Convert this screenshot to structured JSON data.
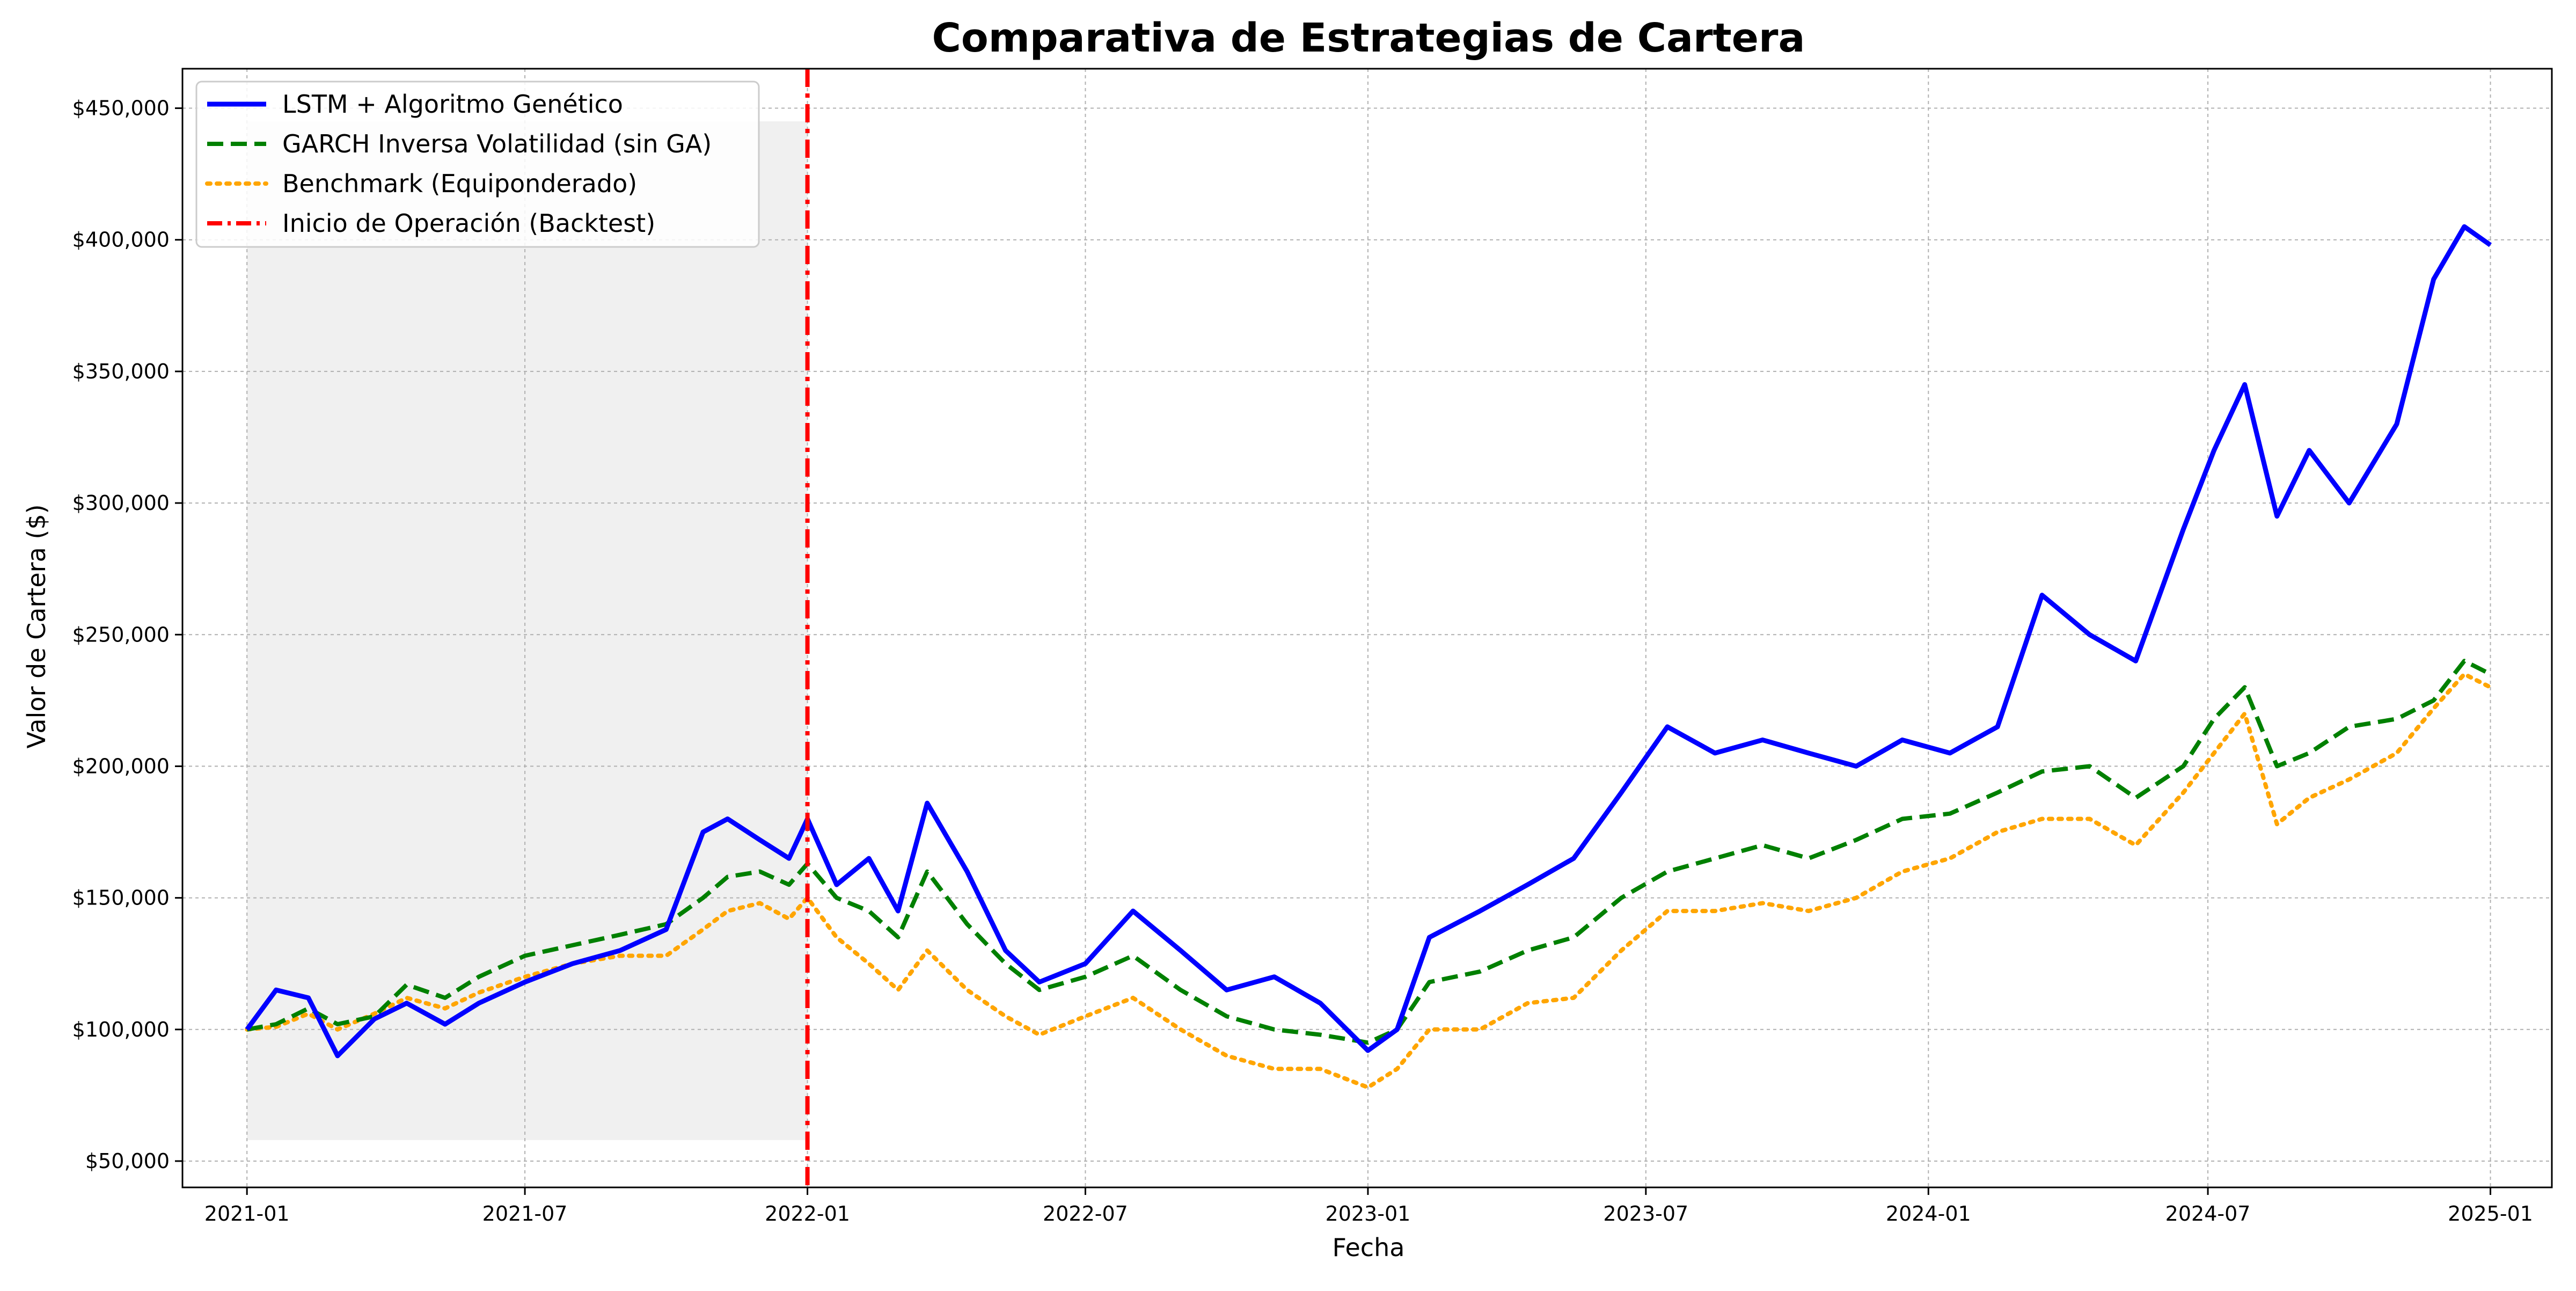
{
  "chart_data": {
    "type": "line",
    "title": "Comparativa de Estrategias de Cartera",
    "xlabel": "Fecha",
    "ylabel": "Valor de Cartera ($)",
    "xlim": [
      "2020-11-20",
      "2025-02-10"
    ],
    "ylim": [
      40000,
      465000
    ],
    "x_ticks": [
      "2021-01",
      "2021-07",
      "2022-01",
      "2022-07",
      "2023-01",
      "2023-07",
      "2024-01",
      "2024-07",
      "2025-01"
    ],
    "y_ticks": [
      50000,
      100000,
      150000,
      200000,
      250000,
      300000,
      350000,
      400000,
      450000
    ],
    "y_tick_labels": [
      "$50,000",
      "$100,000",
      "$150,000",
      "$200,000",
      "$250,000",
      "$300,000",
      "$350,000",
      "$400,000",
      "$450,000"
    ],
    "grid": true,
    "legend_position": "top-left",
    "shaded_region": {
      "x_start": "2021-01-01",
      "x_end": "2022-01-01",
      "y_range": [
        58000,
        445000
      ],
      "color": "#f0f0f0"
    },
    "backtest_start": "2022-01-01",
    "series": [
      {
        "name": "LSTM + Algoritmo Genético",
        "color": "#0000ff",
        "style": "solid",
        "x": [
          "2021-01-01",
          "2021-01-20",
          "2021-02-10",
          "2021-03-01",
          "2021-03-25",
          "2021-04-15",
          "2021-05-10",
          "2021-06-01",
          "2021-07-01",
          "2021-08-01",
          "2021-09-01",
          "2021-10-01",
          "2021-10-25",
          "2021-11-10",
          "2021-12-01",
          "2021-12-20",
          "2022-01-01",
          "2022-01-20",
          "2022-02-10",
          "2022-03-01",
          "2022-03-20",
          "2022-04-15",
          "2022-05-10",
          "2022-06-01",
          "2022-07-01",
          "2022-08-01",
          "2022-09-01",
          "2022-10-01",
          "2022-11-01",
          "2022-12-01",
          "2023-01-01",
          "2023-01-20",
          "2023-02-10",
          "2023-03-15",
          "2023-04-15",
          "2023-05-15",
          "2023-06-15",
          "2023-07-15",
          "2023-08-15",
          "2023-09-15",
          "2023-10-15",
          "2023-11-15",
          "2023-12-15",
          "2024-01-15",
          "2024-02-15",
          "2024-03-15",
          "2024-04-15",
          "2024-05-15",
          "2024-06-15",
          "2024-07-05",
          "2024-07-25",
          "2024-08-15",
          "2024-09-05",
          "2024-10-01",
          "2024-11-01",
          "2024-11-25",
          "2024-12-15",
          "2025-01-01"
        ],
        "values": [
          100000,
          115000,
          112000,
          90000,
          104000,
          110000,
          102000,
          110000,
          118000,
          125000,
          130000,
          138000,
          175000,
          180000,
          172000,
          165000,
          180000,
          155000,
          165000,
          145000,
          186000,
          160000,
          130000,
          118000,
          125000,
          145000,
          130000,
          115000,
          120000,
          110000,
          92000,
          100000,
          135000,
          145000,
          155000,
          165000,
          190000,
          215000,
          205000,
          210000,
          205000,
          200000,
          210000,
          205000,
          215000,
          265000,
          250000,
          240000,
          290000,
          320000,
          345000,
          295000,
          320000,
          300000,
          330000,
          385000,
          405000,
          398000
        ]
      },
      {
        "name": "GARCH Inversa Volatilidad (sin GA)",
        "color": "#008000",
        "style": "dashed",
        "x": [
          "2021-01-01",
          "2021-01-20",
          "2021-02-10",
          "2021-03-01",
          "2021-03-25",
          "2021-04-15",
          "2021-05-10",
          "2021-06-01",
          "2021-07-01",
          "2021-08-01",
          "2021-09-01",
          "2021-10-01",
          "2021-10-25",
          "2021-11-10",
          "2021-12-01",
          "2021-12-20",
          "2022-01-01",
          "2022-01-20",
          "2022-02-10",
          "2022-03-01",
          "2022-03-20",
          "2022-04-15",
          "2022-05-10",
          "2022-06-01",
          "2022-07-01",
          "2022-08-01",
          "2022-09-01",
          "2022-10-01",
          "2022-11-01",
          "2022-12-01",
          "2023-01-01",
          "2023-01-20",
          "2023-02-10",
          "2023-03-15",
          "2023-04-15",
          "2023-05-15",
          "2023-06-15",
          "2023-07-15",
          "2023-08-15",
          "2023-09-15",
          "2023-10-15",
          "2023-11-15",
          "2023-12-15",
          "2024-01-15",
          "2024-02-15",
          "2024-03-15",
          "2024-04-15",
          "2024-05-15",
          "2024-06-15",
          "2024-07-05",
          "2024-07-25",
          "2024-08-15",
          "2024-09-05",
          "2024-10-01",
          "2024-11-01",
          "2024-11-25",
          "2024-12-15",
          "2025-01-01"
        ],
        "values": [
          100000,
          102000,
          108000,
          102000,
          105000,
          117000,
          112000,
          120000,
          128000,
          132000,
          136000,
          140000,
          150000,
          158000,
          160000,
          155000,
          163000,
          150000,
          145000,
          135000,
          160000,
          140000,
          125000,
          115000,
          120000,
          128000,
          115000,
          105000,
          100000,
          98000,
          95000,
          100000,
          118000,
          122000,
          130000,
          135000,
          150000,
          160000,
          165000,
          170000,
          165000,
          172000,
          180000,
          182000,
          190000,
          198000,
          200000,
          188000,
          200000,
          218000,
          230000,
          200000,
          205000,
          215000,
          218000,
          225000,
          240000,
          235000
        ]
      },
      {
        "name": "Benchmark (Equiponderado)",
        "color": "#ffa500",
        "style": "dotted",
        "x": [
          "2021-01-01",
          "2021-01-20",
          "2021-02-10",
          "2021-03-01",
          "2021-03-25",
          "2021-04-15",
          "2021-05-10",
          "2021-06-01",
          "2021-07-01",
          "2021-08-01",
          "2021-09-01",
          "2021-10-01",
          "2021-10-25",
          "2021-11-10",
          "2021-12-01",
          "2021-12-20",
          "2022-01-01",
          "2022-01-20",
          "2022-02-10",
          "2022-03-01",
          "2022-03-20",
          "2022-04-15",
          "2022-05-10",
          "2022-06-01",
          "2022-07-01",
          "2022-08-01",
          "2022-09-01",
          "2022-10-01",
          "2022-11-01",
          "2022-12-01",
          "2023-01-01",
          "2023-01-20",
          "2023-02-10",
          "2023-03-15",
          "2023-04-15",
          "2023-05-15",
          "2023-06-15",
          "2023-07-15",
          "2023-08-15",
          "2023-09-15",
          "2023-10-15",
          "2023-11-15",
          "2023-12-15",
          "2024-01-15",
          "2024-02-15",
          "2024-03-15",
          "2024-04-15",
          "2024-05-15",
          "2024-06-15",
          "2024-07-05",
          "2024-07-25",
          "2024-08-15",
          "2024-09-05",
          "2024-10-01",
          "2024-11-01",
          "2024-11-25",
          "2024-12-15",
          "2025-01-01"
        ],
        "values": [
          100000,
          101000,
          106000,
          100000,
          106000,
          112000,
          108000,
          114000,
          120000,
          125000,
          128000,
          128000,
          138000,
          145000,
          148000,
          142000,
          150000,
          135000,
          125000,
          115000,
          130000,
          115000,
          105000,
          98000,
          105000,
          112000,
          100000,
          90000,
          85000,
          85000,
          78000,
          85000,
          100000,
          100000,
          110000,
          112000,
          130000,
          145000,
          145000,
          148000,
          145000,
          150000,
          160000,
          165000,
          175000,
          180000,
          180000,
          170000,
          190000,
          205000,
          220000,
          178000,
          188000,
          195000,
          205000,
          222000,
          235000,
          230000
        ]
      }
    ]
  },
  "legend": {
    "items": [
      {
        "label": "LSTM + Algoritmo Genético",
        "color": "#0000ff",
        "style": "solid"
      },
      {
        "label": "GARCH Inversa Volatilidad (sin GA)",
        "color": "#008000",
        "style": "dashed"
      },
      {
        "label": "Benchmark (Equiponderado)",
        "color": "#ffa500",
        "style": "dotted"
      },
      {
        "label": "Inicio de Operación (Backtest)",
        "color": "#ff0000",
        "style": "dashdot"
      }
    ]
  },
  "backtest_line_color": "#ff0000"
}
